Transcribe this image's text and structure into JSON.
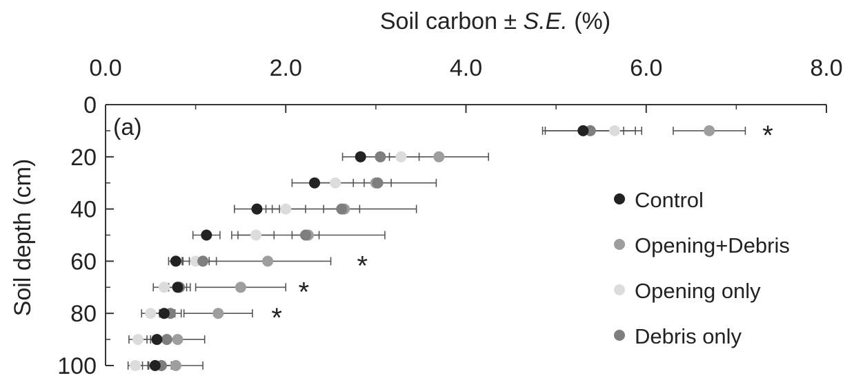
{
  "chart_data": {
    "type": "scatter",
    "title": "",
    "panel_label": "(a)",
    "xlabel_prefix": "Soil carbon ± ",
    "xlabel_italic": "S.E.",
    "xlabel_suffix": " (%)",
    "ylabel": "Soil depth (cm)",
    "xlim": [
      0,
      8
    ],
    "ylim": [
      0,
      100
    ],
    "x_axis_position": "top",
    "x_ticks": [
      0,
      2,
      4,
      6,
      8
    ],
    "x_tick_labels": [
      "0.0",
      "2.0",
      "4.0",
      "6.0",
      "8.0"
    ],
    "y_ticks": [
      0,
      20,
      40,
      60,
      80,
      100
    ],
    "y_tick_labels": [
      "0",
      "20",
      "40",
      "60",
      "80",
      "100"
    ],
    "grid": false,
    "legend_position": "right",
    "series": [
      {
        "name": "Control",
        "color": "#222222",
        "points": [
          {
            "depth": 10,
            "x": 5.3,
            "se": 0.45
          },
          {
            "depth": 20,
            "x": 2.83,
            "se": 0.2
          },
          {
            "depth": 30,
            "x": 2.32,
            "se": 0.25
          },
          {
            "depth": 40,
            "x": 1.68,
            "se": 0.25
          },
          {
            "depth": 50,
            "x": 1.12,
            "se": 0.15
          },
          {
            "depth": 60,
            "x": 0.78,
            "se": 0.08
          },
          {
            "depth": 70,
            "x": 0.8,
            "se": 0.1
          },
          {
            "depth": 80,
            "x": 0.65,
            "se": 0.12
          },
          {
            "depth": 90,
            "x": 0.57,
            "se": 0.2
          },
          {
            "depth": 100,
            "x": 0.55,
            "se": 0.18
          }
        ]
      },
      {
        "name": "Opening+Debris",
        "color": "#9e9e9e",
        "points": [
          {
            "depth": 10,
            "x": 6.7,
            "se": 0.4
          },
          {
            "depth": 20,
            "x": 3.7,
            "se": 0.55
          },
          {
            "depth": 30,
            "x": 3.0,
            "se": 0.67
          },
          {
            "depth": 40,
            "x": 2.65,
            "se": 0.8
          },
          {
            "depth": 50,
            "x": 2.25,
            "se": 0.85
          },
          {
            "depth": 60,
            "x": 1.8,
            "se": 0.7
          },
          {
            "depth": 70,
            "x": 1.5,
            "se": 0.5
          },
          {
            "depth": 80,
            "x": 1.25,
            "se": 0.38
          },
          {
            "depth": 90,
            "x": 0.8,
            "se": 0.3
          },
          {
            "depth": 100,
            "x": 0.78,
            "se": 0.3
          }
        ]
      },
      {
        "name": "Opening only",
        "color": "#dcdcdc",
        "points": [
          {
            "depth": 10,
            "x": 5.65,
            "se": 0.3
          },
          {
            "depth": 20,
            "x": 3.28,
            "se": 0.2
          },
          {
            "depth": 30,
            "x": 2.55,
            "se": 0.2
          },
          {
            "depth": 40,
            "x": 2.0,
            "se": 0.22
          },
          {
            "depth": 50,
            "x": 1.67,
            "se": 0.2
          },
          {
            "depth": 60,
            "x": 1.0,
            "se": 0.15
          },
          {
            "depth": 70,
            "x": 0.65,
            "se": 0.12
          },
          {
            "depth": 80,
            "x": 0.5,
            "se": 0.1
          },
          {
            "depth": 90,
            "x": 0.36,
            "se": 0.1
          },
          {
            "depth": 100,
            "x": 0.33,
            "se": 0.08
          }
        ]
      },
      {
        "name": "Debris only",
        "color": "#7e7e7e",
        "points": [
          {
            "depth": 10,
            "x": 5.38,
            "se": 0.5
          },
          {
            "depth": 20,
            "x": 3.05,
            "se": 0.25
          },
          {
            "depth": 30,
            "x": 3.02,
            "se": 0.15
          },
          {
            "depth": 40,
            "x": 2.62,
            "se": 0.2
          },
          {
            "depth": 50,
            "x": 2.22,
            "se": 0.15
          },
          {
            "depth": 60,
            "x": 1.08,
            "se": 0.15
          },
          {
            "depth": 70,
            "x": 0.82,
            "se": 0.12
          },
          {
            "depth": 80,
            "x": 0.72,
            "se": 0.12
          },
          {
            "depth": 90,
            "x": 0.68,
            "se": 0.15
          },
          {
            "depth": 100,
            "x": 0.62,
            "se": 0.15
          }
        ]
      }
    ],
    "significance_markers": [
      {
        "depth": 10,
        "x": 7.35,
        "label": "*"
      },
      {
        "depth": 60,
        "x": 2.85,
        "label": "*"
      },
      {
        "depth": 70,
        "x": 2.2,
        "label": "*"
      },
      {
        "depth": 80,
        "x": 1.9,
        "label": "*"
      }
    ]
  }
}
